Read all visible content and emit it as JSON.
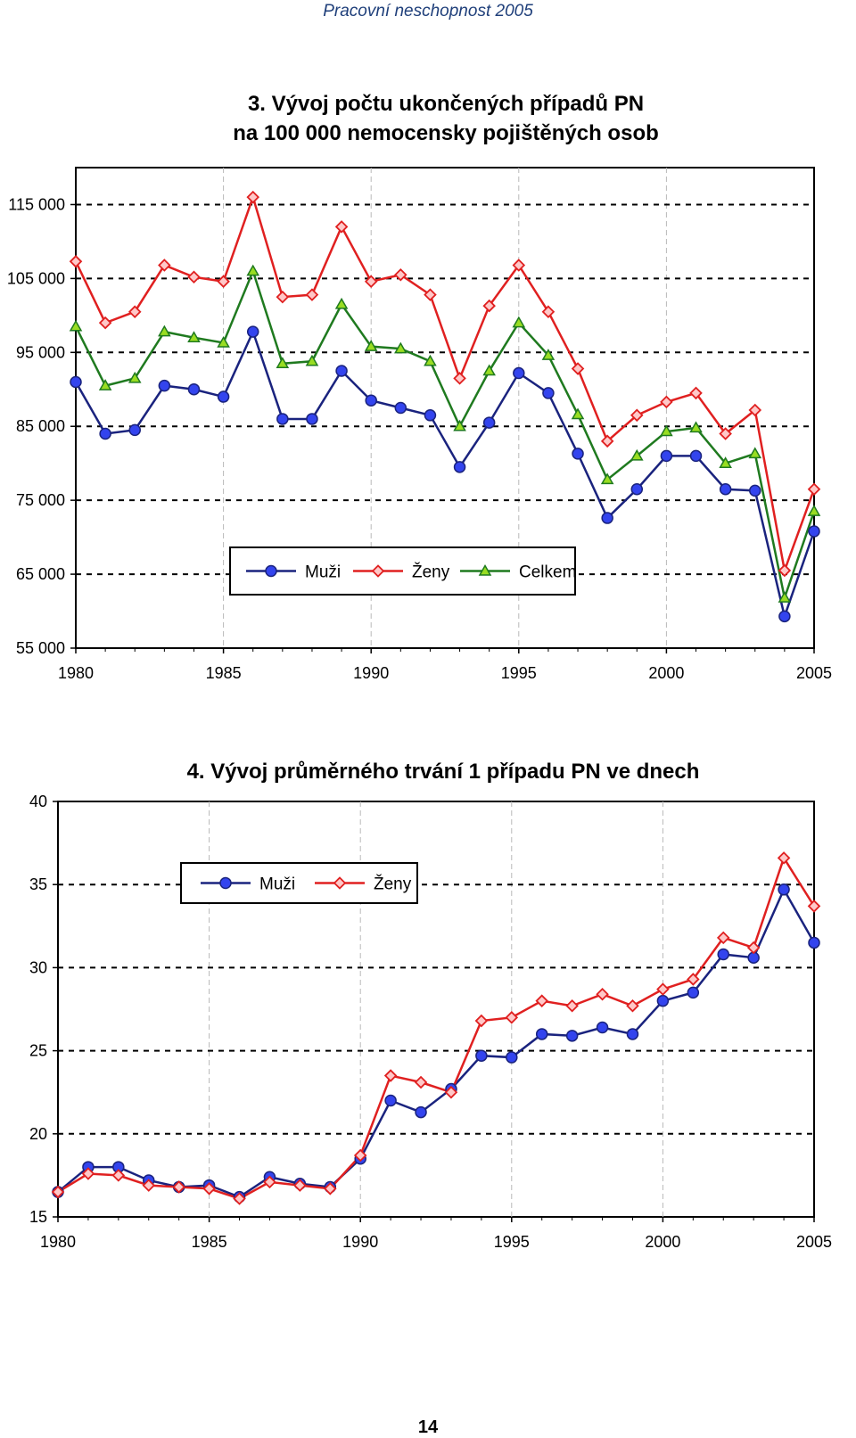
{
  "page": {
    "header": "Pracovní neschopnost 2005",
    "page_number": "14"
  },
  "chart_data": [
    {
      "type": "line",
      "title": [
        "3. Vývoj počtu ukončených případů PN",
        "na 100 000 nemocensky pojištěných osob"
      ],
      "xlabel": "",
      "ylabel": "",
      "xlim": [
        1980,
        2005
      ],
      "ylim": [
        55000,
        120000
      ],
      "xticks": [
        1980,
        1985,
        1990,
        1995,
        2000,
        2005
      ],
      "xtick_labels": [
        "1980",
        "1985",
        "1990",
        "1995",
        "2000",
        "2005"
      ],
      "yticks": [
        55000,
        65000,
        75000,
        85000,
        95000,
        105000,
        115000
      ],
      "ytick_labels": [
        "55 000",
        "65 000",
        "75 000",
        "85 000",
        "95 000",
        "105 000",
        "115 000"
      ],
      "grid": true,
      "legend_position": "lower-center",
      "x": [
        1980,
        1981,
        1982,
        1983,
        1984,
        1985,
        1986,
        1987,
        1988,
        1989,
        1990,
        1991,
        1992,
        1993,
        1994,
        1995,
        1996,
        1997,
        1998,
        1999,
        2000,
        2001,
        2002,
        2003,
        2004,
        2005
      ],
      "series": [
        {
          "name": "Muži",
          "color": "#1a237e",
          "fill": "#3344ee",
          "marker": "circle",
          "values": [
            91000,
            84000,
            84500,
            90500,
            90000,
            89000,
            97800,
            86000,
            86000,
            92500,
            88500,
            87500,
            86500,
            79500,
            85500,
            92200,
            89500,
            81300,
            72600,
            76500,
            81000,
            81000,
            76500,
            76300,
            59300,
            70800
          ]
        },
        {
          "name": "Ženy",
          "color": "#e02020",
          "fill": "#ffc8c8",
          "marker": "diamond",
          "values": [
            107300,
            99000,
            100500,
            106800,
            105200,
            104600,
            116000,
            102500,
            102800,
            112000,
            104600,
            105500,
            102800,
            91500,
            101300,
            106800,
            100500,
            92800,
            83000,
            86500,
            88300,
            89500,
            84000,
            87200,
            65500,
            76500
          ]
        },
        {
          "name": "Celkem",
          "color": "#1f7a1f",
          "fill": "#99dd22",
          "marker": "triangle",
          "values": [
            98500,
            90500,
            91500,
            97800,
            97000,
            96300,
            106000,
            93500,
            93800,
            101500,
            95800,
            95500,
            93800,
            85000,
            92500,
            99000,
            94600,
            86600,
            77800,
            81000,
            84300,
            84800,
            80000,
            81300,
            61800,
            73500
          ]
        }
      ]
    },
    {
      "type": "line",
      "title": [
        "4. Vývoj průměrného trvání 1 případu PN ve dnech"
      ],
      "xlabel": "",
      "ylabel": "",
      "xlim": [
        1980,
        2005
      ],
      "ylim": [
        15,
        40
      ],
      "xticks": [
        1980,
        1985,
        1990,
        1995,
        2000,
        2005
      ],
      "xtick_labels": [
        "1980",
        "1985",
        "1990",
        "1995",
        "2000",
        "2005"
      ],
      "yticks": [
        15,
        20,
        25,
        30,
        35,
        40
      ],
      "ytick_labels": [
        "15",
        "20",
        "25",
        "30",
        "35",
        "40"
      ],
      "grid": true,
      "legend_position": "upper-left",
      "x": [
        1980,
        1981,
        1982,
        1983,
        1984,
        1985,
        1986,
        1987,
        1988,
        1989,
        1990,
        1991,
        1992,
        1993,
        1994,
        1995,
        1996,
        1997,
        1998,
        1999,
        2000,
        2001,
        2002,
        2003,
        2004,
        2005
      ],
      "series": [
        {
          "name": "Muži",
          "color": "#1a237e",
          "fill": "#3344ee",
          "marker": "circle",
          "values": [
            16.5,
            18.0,
            18.0,
            17.2,
            16.8,
            16.9,
            16.2,
            17.4,
            17.0,
            16.8,
            18.5,
            22.0,
            21.3,
            22.7,
            24.7,
            24.6,
            26.0,
            25.9,
            26.4,
            26.0,
            28.0,
            28.5,
            30.8,
            30.6,
            34.7,
            31.5
          ]
        },
        {
          "name": "Ženy",
          "color": "#e02020",
          "fill": "#ffc8c8",
          "marker": "diamond",
          "values": [
            16.5,
            17.6,
            17.5,
            16.9,
            16.8,
            16.7,
            16.1,
            17.1,
            16.9,
            16.7,
            18.7,
            23.5,
            23.1,
            22.5,
            26.8,
            27.0,
            28.0,
            27.7,
            28.4,
            27.7,
            28.7,
            29.3,
            31.8,
            31.2,
            36.6,
            33.7
          ]
        }
      ]
    }
  ]
}
